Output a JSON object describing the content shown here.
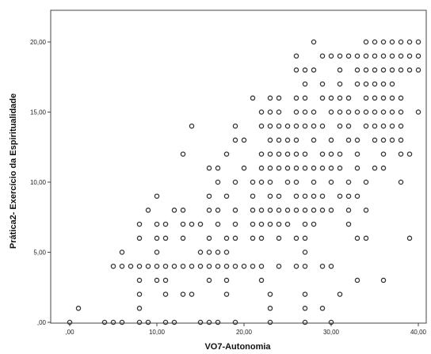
{
  "chart_data": {
    "type": "scatter",
    "title": "",
    "xlabel": "VO7-Autonomia",
    "ylabel": "Prática2- Exercício da Espiritualidade",
    "xlim": [
      0,
      40
    ],
    "ylim": [
      0,
      20
    ],
    "x_ticks": [
      ",00",
      "10,00",
      "20,00",
      "30,00",
      "40,00"
    ],
    "y_ticks": [
      ",00",
      "5,00",
      "10,00",
      "15,00",
      "20,00"
    ],
    "grid": false,
    "marker": "hollow-circle",
    "marker_color": "#333333",
    "series": [
      {
        "points": [
          [
            0,
            0
          ],
          [
            1,
            1
          ],
          [
            4,
            0
          ],
          [
            5,
            0
          ],
          [
            6,
            0
          ],
          [
            8,
            0
          ],
          [
            9,
            0
          ],
          [
            11,
            0
          ],
          [
            12,
            0
          ],
          [
            15,
            0
          ],
          [
            16,
            0
          ],
          [
            17,
            0
          ],
          [
            19,
            0
          ],
          [
            23,
            0
          ],
          [
            27,
            0
          ],
          [
            30,
            0
          ],
          [
            8,
            1
          ],
          [
            23,
            1
          ],
          [
            27,
            1
          ],
          [
            29,
            1
          ],
          [
            8,
            2
          ],
          [
            11,
            2
          ],
          [
            13,
            2
          ],
          [
            14,
            2
          ],
          [
            18,
            2
          ],
          [
            23,
            2
          ],
          [
            27,
            2
          ],
          [
            31,
            2
          ],
          [
            8,
            3
          ],
          [
            10,
            3
          ],
          [
            11,
            3
          ],
          [
            16,
            3
          ],
          [
            18,
            3
          ],
          [
            22,
            3
          ],
          [
            33,
            3
          ],
          [
            36,
            3
          ],
          [
            5,
            4
          ],
          [
            6,
            4
          ],
          [
            7,
            4
          ],
          [
            8,
            4
          ],
          [
            9,
            4
          ],
          [
            10,
            4
          ],
          [
            11,
            4
          ],
          [
            12,
            4
          ],
          [
            13,
            4
          ],
          [
            14,
            4
          ],
          [
            15,
            4
          ],
          [
            16,
            4
          ],
          [
            17,
            4
          ],
          [
            18,
            4
          ],
          [
            19,
            4
          ],
          [
            20,
            4
          ],
          [
            21,
            4
          ],
          [
            22,
            4
          ],
          [
            24,
            4
          ],
          [
            26,
            4
          ],
          [
            27,
            4
          ],
          [
            29,
            4
          ],
          [
            30,
            4
          ],
          [
            6,
            5
          ],
          [
            10,
            5
          ],
          [
            15,
            5
          ],
          [
            16,
            5
          ],
          [
            17,
            5
          ],
          [
            18,
            5
          ],
          [
            27,
            5
          ],
          [
            8,
            6
          ],
          [
            10,
            6
          ],
          [
            11,
            6
          ],
          [
            13,
            6
          ],
          [
            16,
            6
          ],
          [
            18,
            6
          ],
          [
            19,
            6
          ],
          [
            21,
            6
          ],
          [
            22,
            6
          ],
          [
            24,
            6
          ],
          [
            26,
            6
          ],
          [
            27,
            6
          ],
          [
            33,
            6
          ],
          [
            34,
            6
          ],
          [
            39,
            6
          ],
          [
            8,
            7
          ],
          [
            10,
            7
          ],
          [
            11,
            7
          ],
          [
            13,
            7
          ],
          [
            14,
            7
          ],
          [
            15,
            7
          ],
          [
            17,
            7
          ],
          [
            19,
            7
          ],
          [
            21,
            7
          ],
          [
            22,
            7
          ],
          [
            23,
            7
          ],
          [
            24,
            7
          ],
          [
            25,
            7
          ],
          [
            27,
            7
          ],
          [
            28,
            7
          ],
          [
            32,
            7
          ],
          [
            9,
            8
          ],
          [
            12,
            8
          ],
          [
            13,
            8
          ],
          [
            16,
            8
          ],
          [
            17,
            8
          ],
          [
            19,
            8
          ],
          [
            21,
            8
          ],
          [
            22,
            8
          ],
          [
            23,
            8
          ],
          [
            24,
            8
          ],
          [
            25,
            8
          ],
          [
            26,
            8
          ],
          [
            27,
            8
          ],
          [
            28,
            8
          ],
          [
            29,
            8
          ],
          [
            30,
            8
          ],
          [
            32,
            8
          ],
          [
            34,
            8
          ],
          [
            10,
            9
          ],
          [
            16,
            9
          ],
          [
            18,
            9
          ],
          [
            21,
            9
          ],
          [
            23,
            9
          ],
          [
            24,
            9
          ],
          [
            26,
            9
          ],
          [
            27,
            9
          ],
          [
            28,
            9
          ],
          [
            29,
            9
          ],
          [
            31,
            9
          ],
          [
            32,
            9
          ],
          [
            33,
            9
          ],
          [
            17,
            10
          ],
          [
            19,
            10
          ],
          [
            21,
            10
          ],
          [
            22,
            10
          ],
          [
            23,
            10
          ],
          [
            25,
            10
          ],
          [
            26,
            10
          ],
          [
            28,
            10
          ],
          [
            30,
            10
          ],
          [
            32,
            10
          ],
          [
            34,
            10
          ],
          [
            38,
            10
          ],
          [
            16,
            11
          ],
          [
            17,
            11
          ],
          [
            20,
            11
          ],
          [
            22,
            11
          ],
          [
            23,
            11
          ],
          [
            24,
            11
          ],
          [
            25,
            11
          ],
          [
            26,
            11
          ],
          [
            27,
            11
          ],
          [
            28,
            11
          ],
          [
            29,
            11
          ],
          [
            30,
            11
          ],
          [
            31,
            11
          ],
          [
            33,
            11
          ],
          [
            35,
            11
          ],
          [
            36,
            11
          ],
          [
            13,
            12
          ],
          [
            18,
            12
          ],
          [
            22,
            12
          ],
          [
            23,
            12
          ],
          [
            24,
            12
          ],
          [
            25,
            12
          ],
          [
            26,
            12
          ],
          [
            27,
            12
          ],
          [
            29,
            12
          ],
          [
            30,
            12
          ],
          [
            31,
            12
          ],
          [
            33,
            12
          ],
          [
            36,
            12
          ],
          [
            38,
            12
          ],
          [
            39,
            12
          ],
          [
            19,
            13
          ],
          [
            20,
            13
          ],
          [
            23,
            13
          ],
          [
            24,
            13
          ],
          [
            25,
            13
          ],
          [
            26,
            13
          ],
          [
            28,
            13
          ],
          [
            30,
            13
          ],
          [
            32,
            13
          ],
          [
            33,
            13
          ],
          [
            35,
            13
          ],
          [
            36,
            13
          ],
          [
            37,
            13
          ],
          [
            38,
            13
          ],
          [
            14,
            14
          ],
          [
            19,
            14
          ],
          [
            22,
            14
          ],
          [
            23,
            14
          ],
          [
            24,
            14
          ],
          [
            25,
            14
          ],
          [
            26,
            14
          ],
          [
            27,
            14
          ],
          [
            28,
            14
          ],
          [
            29,
            14
          ],
          [
            31,
            14
          ],
          [
            32,
            14
          ],
          [
            34,
            14
          ],
          [
            35,
            14
          ],
          [
            36,
            14
          ],
          [
            37,
            14
          ],
          [
            38,
            14
          ],
          [
            22,
            15
          ],
          [
            23,
            15
          ],
          [
            24,
            15
          ],
          [
            26,
            15
          ],
          [
            27,
            15
          ],
          [
            28,
            15
          ],
          [
            30,
            15
          ],
          [
            31,
            15
          ],
          [
            32,
            15
          ],
          [
            33,
            15
          ],
          [
            34,
            15
          ],
          [
            35,
            15
          ],
          [
            36,
            15
          ],
          [
            37,
            15
          ],
          [
            38,
            15
          ],
          [
            40,
            15
          ],
          [
            21,
            16
          ],
          [
            23,
            16
          ],
          [
            24,
            16
          ],
          [
            26,
            16
          ],
          [
            27,
            16
          ],
          [
            29,
            16
          ],
          [
            30,
            16
          ],
          [
            31,
            16
          ],
          [
            32,
            16
          ],
          [
            34,
            16
          ],
          [
            35,
            16
          ],
          [
            36,
            16
          ],
          [
            37,
            16
          ],
          [
            38,
            16
          ],
          [
            27,
            17
          ],
          [
            29,
            17
          ],
          [
            31,
            17
          ],
          [
            33,
            17
          ],
          [
            34,
            17
          ],
          [
            35,
            17
          ],
          [
            36,
            17
          ],
          [
            37,
            17
          ],
          [
            26,
            18
          ],
          [
            27,
            18
          ],
          [
            28,
            18
          ],
          [
            31,
            18
          ],
          [
            33,
            18
          ],
          [
            34,
            18
          ],
          [
            35,
            18
          ],
          [
            36,
            18
          ],
          [
            37,
            18
          ],
          [
            38,
            18
          ],
          [
            39,
            18
          ],
          [
            40,
            18
          ],
          [
            26,
            19
          ],
          [
            29,
            19
          ],
          [
            30,
            19
          ],
          [
            31,
            19
          ],
          [
            32,
            19
          ],
          [
            33,
            19
          ],
          [
            34,
            19
          ],
          [
            35,
            19
          ],
          [
            36,
            19
          ],
          [
            37,
            19
          ],
          [
            38,
            19
          ],
          [
            39,
            19
          ],
          [
            40,
            19
          ],
          [
            28,
            20
          ],
          [
            34,
            20
          ],
          [
            35,
            20
          ],
          [
            36,
            20
          ],
          [
            37,
            20
          ],
          [
            38,
            20
          ],
          [
            39,
            20
          ],
          [
            40,
            20
          ]
        ]
      }
    ]
  }
}
